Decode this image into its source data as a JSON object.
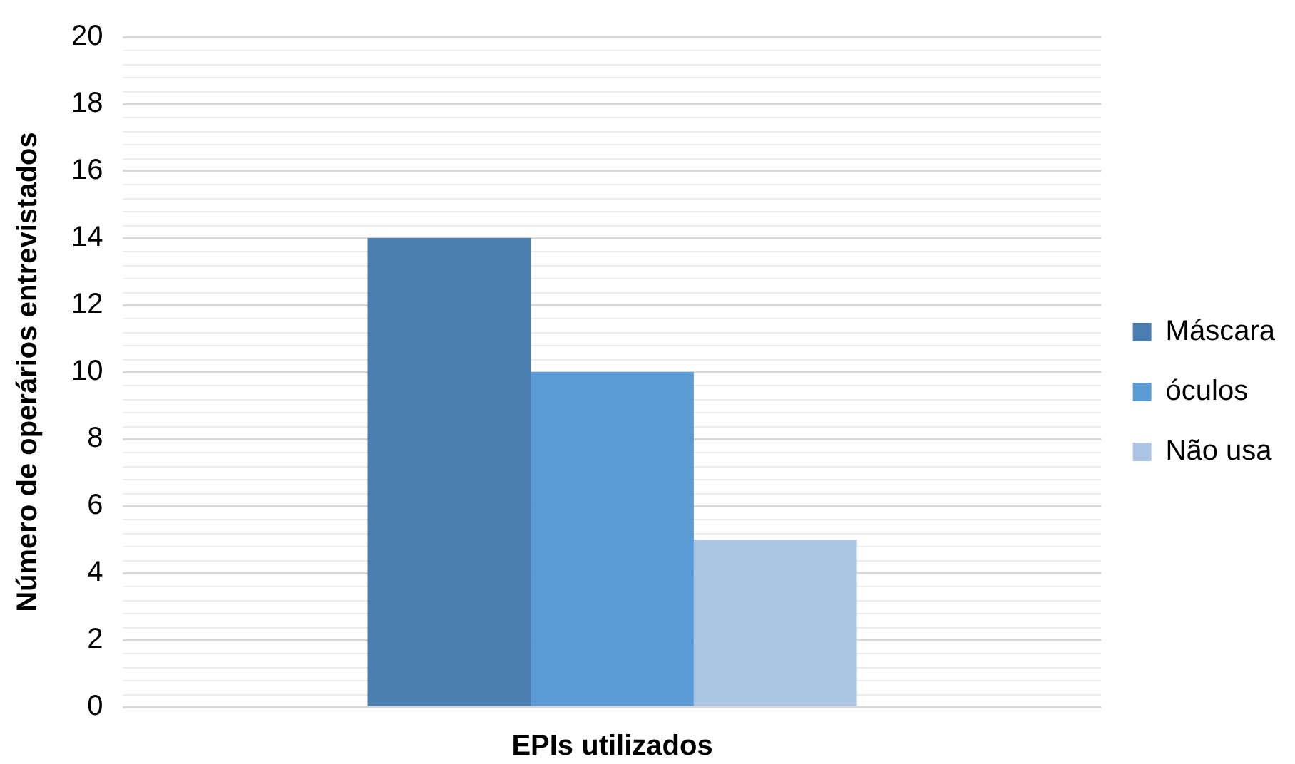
{
  "chart_data": {
    "type": "bar",
    "xlabel": "EPIs utilizados",
    "ylabel": "Número de operários entrevistados",
    "categories": [
      null
    ],
    "series": [
      {
        "name": "Máscara",
        "color": "#4a7eb0",
        "values": [
          14
        ]
      },
      {
        "name": "óculos",
        "color": "#5b9bd5",
        "values": [
          10
        ]
      },
      {
        "name": "Não usa",
        "color": "#adc5e5",
        "values": [
          5
        ]
      }
    ],
    "ylim": [
      0,
      20
    ],
    "yticks": [
      0,
      2,
      4,
      6,
      8,
      10,
      12,
      14,
      16,
      18,
      20
    ],
    "grid": "y",
    "legend": "right"
  }
}
